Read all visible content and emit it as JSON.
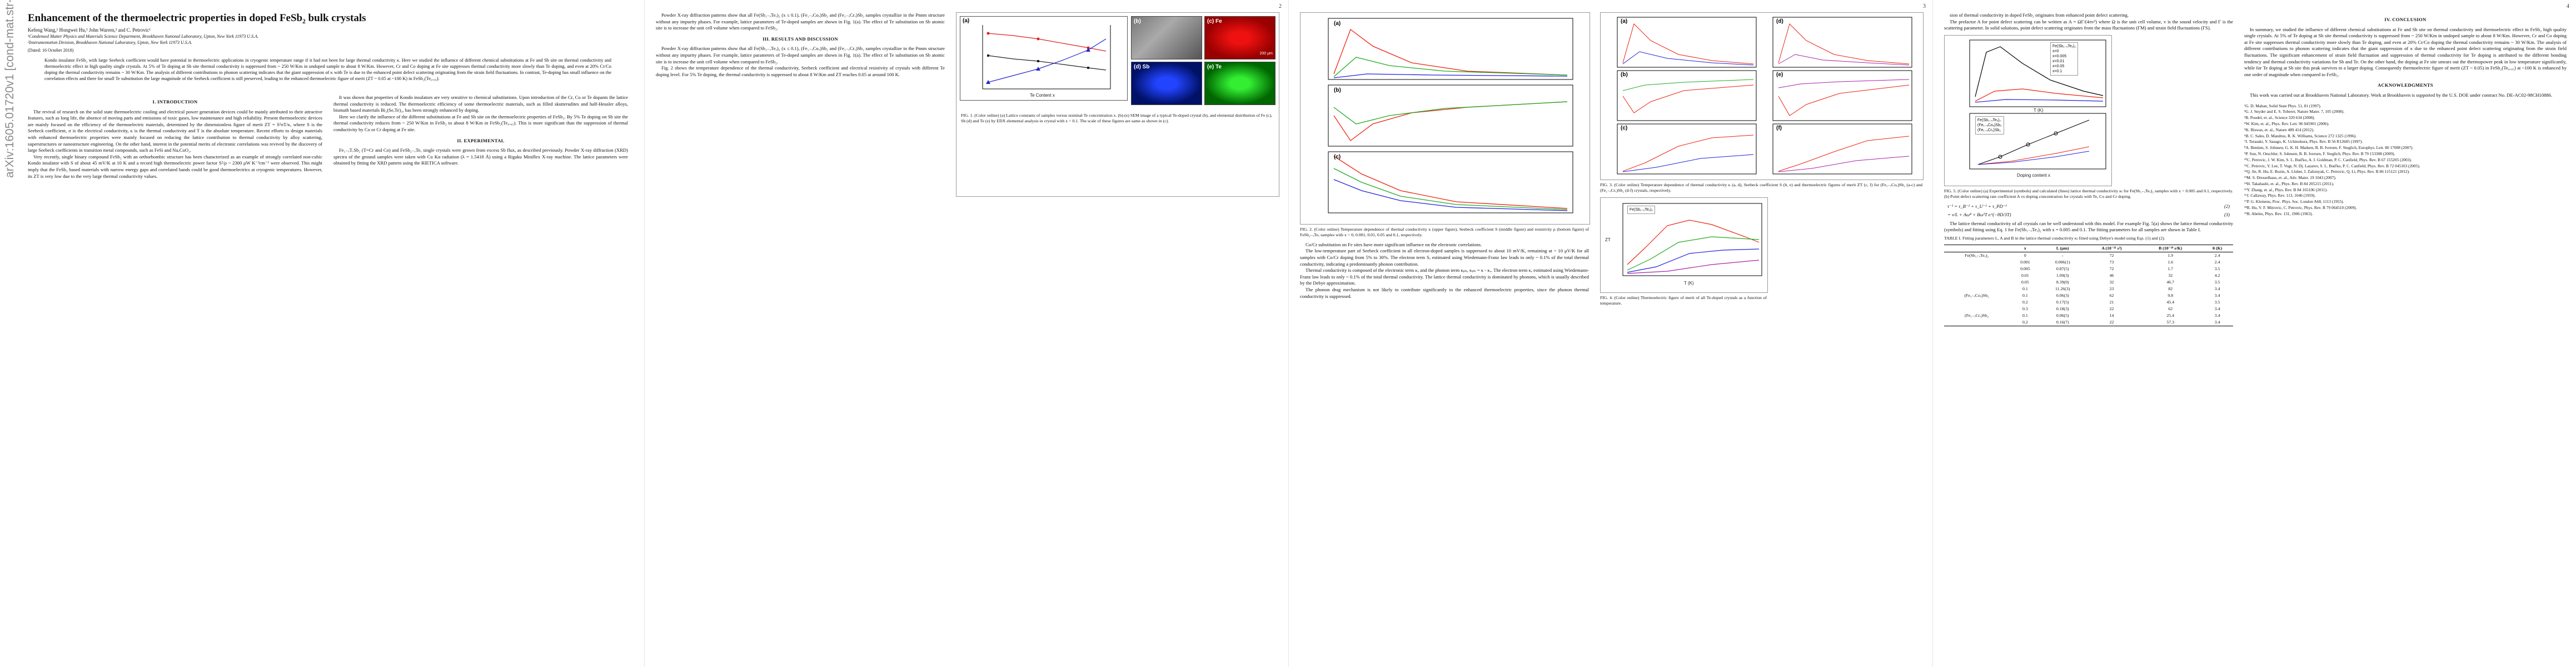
{
  "arxiv_stamp": "arXiv:1605.01720v1  [cond-mat.str-el]  5 May 2016",
  "page_numbers": [
    "2",
    "3",
    "4"
  ],
  "title": "Enhancement of the thermoelectric properties in doped FeSb₂ bulk crystals",
  "authors": "Kefeng Wang,¹ Hongwei Hu,² John Warren,² and C. Petrovic¹",
  "affiliations": [
    "¹Condensed Matter Physics and Materials Science Department, Brookhaven National Laboratory, Upton, New York 11973 U.S.A.",
    "²Instrumentation Division, Brookhaven National Laboratory, Upton, New York 11973 U.S.A."
  ],
  "date": "(Dated: 16 October 2018)",
  "abstract": "Kondo insulator FeSb₂ with large Seebeck coefficient would have potential in thermoelectric applications in cryogenic temperature range if it had not been for large thermal conductivity κ. Here we studied the influence of different chemical substitutions at Fe and Sb site on thermal conductivity and thermoelectric effect in high quality single crystals. At 5% of Te doping at Sb site thermal conductivity is suppressed from ~ 250 W/Km in undoped sample to about 8 W/Km. However, Cr and Co doping at Fe site suppresses thermal conductivity more slowly than Te doping, and even at 20% Cr/Co doping the thermal conductivity remains ~ 30 W/Km. The analysis of different contributions to phonon scattering indicates that the giant suppression of κ with Te is due to the enhanced point defect scattering originating from the strain field fluctuations. In contrast, Te-doping has small influence on the correlation effects and there for small Te substitution the large magnitude of the Seebeck coefficient is still preserved, leading to the enhanced thermoelectric figure of merit (ZT ~ 0.05 at ~100 K) in FeSb₂(Te₀.₀₅).",
  "sections": {
    "intro": "I.   INTRODUCTION",
    "experimental": "II.   EXPERIMENTAL",
    "results": "III.   RESULTS AND DISCUSSION",
    "conclusion": "IV.   CONCLUSION",
    "ack": "ACKNOWLEDGMENTS"
  },
  "intro_paragraphs": [
    "The revival of research on the solid state thermoelectric cooling and electrical power generation devices could be mainly attributed to their attractive features, such as long life, the absence of moving parts and emissions of toxic gases, low maintenance and high reliability. Present thermoelectric devices are mainly focused on the efficiency of the thermoelectric materials, determined by the dimensionless figure of merit ZT = S²σT/κ, where S is the Seebeck coefficient, σ is the electrical conductivity, κ is the thermal conductivity and T is the absolute temperature. Recent efforts to design materials with enhanced thermoelectric properties were mainly focused on reducing the lattice contribution to thermal conductivity by alloy scattering, superstructures or nanostructure engineering. On the other hand, interest in the potential merits of electronic correlations was revived by the discovery of large Seebeck coefficients in transition metal compounds, such as FeSi and NaₓCoO₂.",
    "Very recently, single binary compound FeSb₂ with an orthorhombic structure has been characterized as an example of strongly correlated non-cubic Kondo insulator with S of about 45 mV/K at 10 K and a record high thermoelectric power factor S²/ρ ~ 2300 μW K⁻²cm⁻¹ were observed. This might imply that the FeSb₂ based materials with narrow energy gaps and correlated bands could be good thermoelectrics at cryogenic temperatures. However, its ZT is very low due to the very large thermal conductivity values."
  ],
  "col2_paragraphs": [
    "It was shown that properties of Kondo insulators are very sensitive to chemical substitutions. Upon introduction of the Cr, Co or Te dopants the lattice thermal conductivity is reduced. The thermoelectric efficiency of some thermoelectric materials, such as filled skutterudites and half-Heusler alloys, bismuth based materials Bi₂(Se,Te)₃, has been strongly enhanced by doping.",
    "Here we clarify the influence of the different substitutions at Fe and Sb site on the thermoelectric properties of FeSb₂. By 5% Te doping on Sb site the thermal conductivity reduces from ~ 250 W/Km in FeSb₂ to about 8 W/Km in FeSb₂(Te₀.₀₅). This is more significant than the suppression of thermal conductivity by Co or Cr doping at Fe site."
  ],
  "experimental_text": "Fe₁₋ₓTₓSb₂ (T=Cr and Co) and FeSb₂₋ₓTeₓ single crystals were grown from excess Sb flux, as described previously. Powder X-ray diffraction (XRD) spectra of the ground samples were taken with Cu Kα radiation (λ = 1.5418 Å) using a Rigaku Miniflex X-ray machine. The lattice parameters were obtained by fitting the XRD pattern using the RIETICA software.",
  "results_text": [
    "Powder X-ray diffraction patterns show that all Fe(Sb₁₋ₓTeₓ)₂ (x ≤ 0.1), (Fe₁₋ₓCoₓ)Sb₂ and (Fe₁₋ₓCrₓ)Sb₂ samples crystallize in the Pnnm structure without any impurity phases. For example, lattice parameters of Te-doped samples are shown in Fig. 1(a). The effect of Te substitution on Sb atomic site is to increase the unit cell volume when compared to FeSb₂.",
    "Fig. 2 shows the temperature dependence of the thermal conductivity, Seebeck coefficient and electrical resistivity of crystals with different Te doping level. For 5% Te doping, the thermal conductivity is suppressed to about 8 W/Km and ZT reaches 0.05 at around 100 K."
  ],
  "figure1": {
    "caption": "FIG. 1. (Color online) (a) Lattice constants of samples versus nominal Te concentration x. (b)-(e) SEM image of a typical Te-doped crystal (b), and elemental distribution of Fe (c), Sb (d) and Te (e) by EDX elemental analysis in crystal with x = 0.1. The scale of these figures are same as shown in (c).",
    "panel_a": "(a)",
    "panels": [
      "(b)",
      "(c) Fe",
      "(d) Sb",
      "(e) Te"
    ],
    "scale": "200 μm",
    "xlabel": "Te Content x",
    "ylabel_left": "Lattice Parameter (Å)",
    "ylabel_right": "Volume (Å³)"
  },
  "figure2": {
    "caption": "FIG. 2. (Color online) Temperature dependence of thermal conductivity κ (upper figure), Seebeck coefficient S (middle figure) and resistivity ρ (bottom figure) of FeSb₂₋ₓTeₓ samples with x = 0, 0.001, 0.01, 0.05 and 0.1, respectively.",
    "panel_labels": [
      "(a)",
      "(b)",
      "(c)"
    ]
  },
  "figure3": {
    "caption": "FIG. 3. (Color online) Temperature dependence of thermal conductivity κ (a, d), Seebeck coefficient S (b, e) and thermoelectric figures of merit ZT (c, f) for (Fe₁₋ₓCoₓ)Sb₂ (a-c) and (Fe₁₋ₓCrₓ)Sb₂ (d-f) crystals, respectively.",
    "panel_labels": [
      "(a)",
      "(b)",
      "(c)",
      "(d)",
      "(e)",
      "(f)"
    ]
  },
  "figure4": {
    "caption": "FIG. 4. (Color online) Thermoelectric figure of merit of all Te-doped crystals as a function of temperature.",
    "legend_title": "Fe(Sb₁₋ₓTeₓ)₂",
    "xlabel": "T (K)",
    "ylabel": "ZT"
  },
  "figure5": {
    "caption": "FIG. 5. (Color online) (a) Experimental (symbols) and calculated (lines) lattice thermal conductivity κₗ for Fe(Sb₁₋ₓTeₓ)₂ samples with x = 0.005 and 0.1, respectively. (b) Point defect scattering rate coefficient A vs doping concentration for crystals with Te, Co and Cr doping.",
    "legend_title": "Fe(Sb₁₋ₓTeₓ)₂",
    "legend_items": [
      "x=0",
      "x=0.005",
      "x=0.01",
      "x=0.05",
      "x=0.1"
    ],
    "legend_b": [
      "Fe(Sb₁₋ₓTeₓ)₂",
      "(Fe₁₋ₓCoₓ)Sb₂",
      "(Fe₁₋ₓCrₓ)Sb₂"
    ],
    "xlabel_a": "T (K)",
    "ylabel_a": "κₗ (W/K m)",
    "xlabel_b": "Doping content x",
    "ylabel_b": "A (10⁻⁴¹ s³)"
  },
  "page3_text": [
    "Co/Cr substitution on Fe sites have more significant influence on the electronic correlations.",
    "The low-temperature part of Seebeck coefficient in all electron-doped samples is suppressed to about 10 mV/K, remaining at ~ 10 μV/K for all samples with Co/Cr doping from 5% to 30%. The electron term Sₑ estimated using Wiedemann-Franz law leads to only ~ 0.1% of the total thermal conductivity, indicating a predominantly phonon contribution.",
    "Thermal conductivity is composed of the electronic term κₑ and the phonon term κₚₕ, κₚₕ = κ - κₑ. The electron term κₑ estimated using Wiedemann-Franz law leads to only ~ 0.1% of the total thermal conductivity. The lattice thermal conductivity is dominated by phonons, which is usually described by the Debye approximation.",
    "The phonon drag mechanism is not likely to contribute significantly to the enhanced thermoelectric properties, since the phonon thermal conductivity is suppressed."
  ],
  "equations": {
    "eq1": "τ⁻¹ = τ_B⁻¹ + τ_U⁻¹ + τ_PD⁻¹",
    "eq1n": "(2)",
    "eq2": "= v/L + Aω⁴ + Bω²T e^(−θD/3T)",
    "eq2n": "(3)",
    "eq3": "κₗ = (k_B/2π²v)(k_BT/ħ)³ ∫ τ_c x⁴eˣ/(eˣ−1)² dx",
    "eq3n": "(1)"
  },
  "page4_text": [
    "sion of thermal conductivity in doped FeSb₂ originates from enhanced point defect scattering.",
    "The prefactor A for point defect scattering can be written as A = ΩΓ/(4πv³) where Ω is the unit cell volume, v is the sound velocity and Γ is the scattering parameter. In solid solutions, point defect scattering originates from the mass fluctuations (ΓM) and strain field fluctuations (ΓS).",
    "The lattice thermal conductivity of all crystals can be well understood with this model. For example Fig. 5(a) shows the lattice thermal conductivity (symbols) and fitting using Eq. 1 for Fe(Sb₁₋ₓTeₓ)₂ with x = 0.005 and 0.1. The fitting parameters for all samples are shown in Table I."
  ],
  "table1": {
    "caption": "TABLE I. Fitting parameters L, A and B in the lattice thermal conductivity κₗ fitted using Debye's model using Eqs. (1) and (2).",
    "headers": [
      "",
      "x",
      "L (μm)",
      "A (10⁻⁴¹ s³)",
      "B (10⁻¹⁸ s/K)",
      "θ (K)"
    ],
    "group_labels": [
      "Fe(Sb₁₋ₓTeₓ)₂",
      "(Fe₁₋ₓCoₓ)Sb₂",
      "(Fe₁₋ₓCrₓ)Sb₂"
    ],
    "rows": [
      [
        "",
        "0",
        "-",
        "72",
        "1.9",
        "2.4"
      ],
      [
        "",
        "0.001",
        "0.006(1)",
        "73",
        "1.6",
        "2.4"
      ],
      [
        "",
        "0.005",
        "0.87(5)",
        "72",
        "1.7",
        "3.5"
      ],
      [
        "",
        "0.01",
        "1.09(3)",
        "46",
        "32",
        "4.2"
      ],
      [
        "",
        "0.05",
        "8.39(0)",
        "32",
        "46.7",
        "3.5"
      ],
      [
        "",
        "0.1",
        "11.26(3)",
        "23",
        "82",
        "3.4"
      ],
      [
        "",
        "0.1",
        "0.06(3)",
        "62",
        "9.8",
        "3.4"
      ],
      [
        "",
        "0.2",
        "0.17(5)",
        "21",
        "45.4",
        "3.5"
      ],
      [
        "",
        "0.3",
        "0.18(3)",
        "22",
        "62",
        "3.4"
      ],
      [
        "",
        "0.1",
        "0.06(5)",
        "14",
        "25.4",
        "3.4"
      ],
      [
        "",
        "0.2",
        "0.16(7)",
        "22",
        "57.3",
        "3.4"
      ]
    ]
  },
  "conclusion_text": "In summary, we studied the influence of different chemical substitutions at Fe and Sb site on thermal conductivity and thermoelectric effect in FeSb₂ high quality single crystals. At 5% of Te doping at Sb site thermal conductivity is suppressed from ~ 250 W/Km in undoped sample to about 8 W/Km. However, Cr and Co doping at Fe site suppresses thermal conductivity more slowly than Te doping, and even at 20% Cr/Co doping the thermal conductivity remains ~ 30 W/Km. The analysis of different contributions to phonon scattering indicates that the giant suppression of κ due to the enhanced point defect scattering originating from the strain field fluctuations. The significant enhancement of strain field fluctuation and suppression of thermal conductivity for Te doping is attributed to the different bonding tendency and thermal conductivity variations for Sb and Te. On the other hand, the doping at Fe site smears out the thermopower peak in low temperature significantly, while for Te doping at Sb site this peak survives to a larger doping. Consequently thermoelectric figure of merit (ZT ~ 0.05) in FeSb₂(Te₀.₀₅) at ~100 K is enhanced by one order of magnitude when compared to FeSb₂.",
  "ack_text": "This work was carried out at Brookhaven National Laboratory. Work at Brookhaven is supported by the U.S. DOE under contract No. DE-AC02-98CH10886.",
  "references": [
    "¹G. D. Mahan, Solid State Phys. 51, 81 (1997).",
    "²G. J. Snyder and E. S. Toberer, Nature Mater. 7, 105 (2008).",
    "³B. Poudel, et. al., Science 320 634 (2008).",
    "⁴W. Kim, et. al., Phys. Rev. Lett. 96 045901 (2006).",
    "⁵K. Biswas, et. al., Nature 489 414 (2012).",
    "⁶B. C. Sales, D. Mandrus, R. K. Williams, Science 272 1325 (1996).",
    "⁷I. Terasaki, Y. Sasago, K. Uchinokura, Phys. Rev. B 56 R12685 (1997).",
    "⁸A. Bentien, S. Johnsen, G. K. H. Madsen, B. B. Iversen, F. Steglich, Europhys. Lett. 80 17008 (2007).",
    "⁹P. Sun, N. Oeschler, S. Johnsen, B. B. Iversen, F. Steglich, Phys. Rev. B 79 153308 (2009).",
    "¹⁰C. Petrovic, J. W. Kim, S. L. Bud'ko, A. I. Goldman, P. C. Canfield, Phys. Rev. B 67 155205 (2003).",
    "¹¹C. Petrovic, Y. Lee, T. Vogt, N. Dj. Lazarov, S. L. Bud'ko, P. C. Canfield, Phys. Rev. B 72 045103 (2005).",
    "¹²Q. Jie, R. Hu, E. Bozin, A. Llobet, I. Zaliznyak, C. Petrovic, Q. Li, Phys. Rev. B 86 115121 (2012).",
    "¹³M. S. Dresselhaus, et. al., Adv. Mater. 19 1043 (2007).",
    "¹⁴H. Takahashi, et. al., Phys. Rev. B 84 205215 (2011).",
    "¹⁵Y. Zhang, et. al., Phys. Rev. B 84 165106 (2011).",
    "¹⁶J. Callaway, Phys. Rev. 113, 1046 (1959).",
    "¹⁷P. G. Klemens, Proc. Phys. Soc. London A68, 1113 (1955).",
    "¹⁸R. Hu, V. F. Mitrovic, C. Petrovic, Phys. Rev. B 79 064510 (2009).",
    "¹⁹B. Abeles, Phys. Rev. 131, 1906 (1963)."
  ]
}
